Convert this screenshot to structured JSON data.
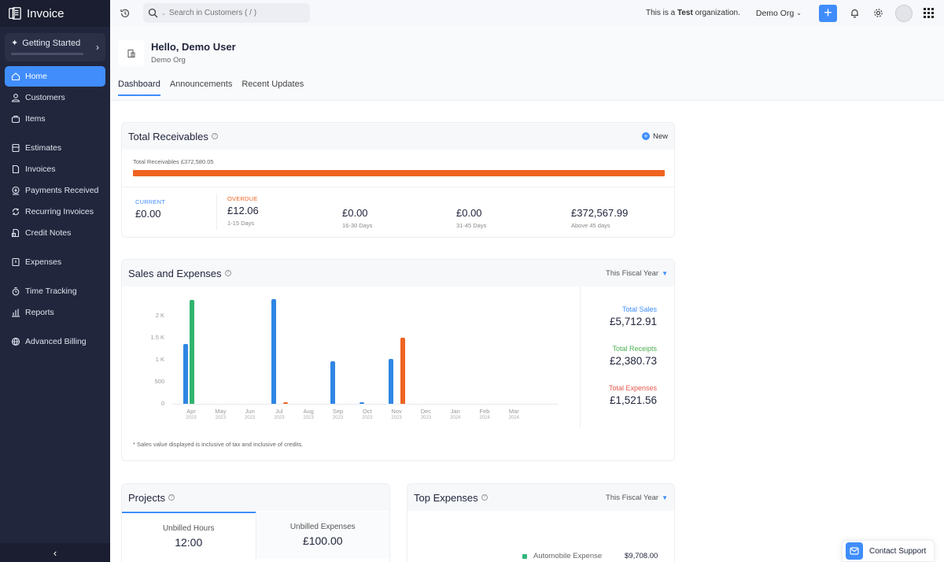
{
  "app": {
    "name": "Invoice"
  },
  "sidebar": {
    "getting_started": "Getting Started",
    "items": [
      {
        "label": "Home",
        "icon": "home-icon",
        "active": true
      },
      {
        "label": "Customers",
        "icon": "user-icon"
      },
      {
        "label": "Items",
        "icon": "basket-icon"
      },
      {
        "label": "Estimates",
        "icon": "calculator-icon"
      },
      {
        "label": "Invoices",
        "icon": "document-icon"
      },
      {
        "label": "Payments Received",
        "icon": "download-circle-icon"
      },
      {
        "label": "Recurring Invoices",
        "icon": "recurring-icon"
      },
      {
        "label": "Credit Notes",
        "icon": "credit-note-icon"
      },
      {
        "label": "Expenses",
        "icon": "receipt-icon"
      },
      {
        "label": "Time Tracking",
        "icon": "stopwatch-icon"
      },
      {
        "label": "Reports",
        "icon": "bar-chart-icon"
      },
      {
        "label": "Advanced Billing",
        "icon": "globe-icon"
      }
    ],
    "collapse": "‹"
  },
  "topbar": {
    "search_placeholder": "Search in Customers ( / )",
    "test_org_prefix": "This is a ",
    "test_org_bold": "Test",
    "test_org_suffix": " organization.",
    "org_switch": "Demo Org",
    "plus": "+"
  },
  "header": {
    "greeting": "Hello, Demo User",
    "org": "Demo Org",
    "tabs": [
      {
        "label": "Dashboard",
        "active": true
      },
      {
        "label": "Announcements"
      },
      {
        "label": "Recent Updates"
      }
    ]
  },
  "receivables": {
    "title": "Total Receivables",
    "new_label": "New",
    "bar_label": "Total Receivables £372,580.05",
    "bar_color": "#ef6422",
    "current": {
      "label": "CURRENT",
      "value": "£0.00",
      "color": "#408dfb"
    },
    "overdue_label": "OVERDUE",
    "overdue_color": "#ef6422",
    "buckets": [
      {
        "value": "£12.06",
        "sub": "1-15 Days"
      },
      {
        "value": "£0.00",
        "sub": "16-30 Days"
      },
      {
        "value": "£0.00",
        "sub": "31-45 Days"
      },
      {
        "value": "£372,567.99",
        "sub": "Above 45 days"
      }
    ]
  },
  "sales_expenses": {
    "title": "Sales and Expenses",
    "period": "This Fiscal Year",
    "footnote": "* Sales value displayed is inclusive of tax and inclusive of credits.",
    "totals": [
      {
        "label": "Total Sales",
        "value": "£5,712.91",
        "color": "#408dfb"
      },
      {
        "label": "Total Receipts",
        "value": "£2,380.73",
        "color": "#4caf50"
      },
      {
        "label": "Total Expenses",
        "value": "£1,521.56",
        "color": "#e5574a"
      }
    ]
  },
  "chart_data": {
    "type": "bar",
    "title": "Sales and Expenses",
    "categories": [
      "Apr 2023",
      "May 2023",
      "Jun 2023",
      "Jul 2023",
      "Aug 2023",
      "Sep 2023",
      "Oct 2023",
      "Nov 2023",
      "Dec 2023",
      "Jan 2024",
      "Feb 2024",
      "Mar 2024"
    ],
    "xticks": [
      {
        "m": "Apr",
        "y": "2023"
      },
      {
        "m": "May",
        "y": "2023"
      },
      {
        "m": "Jun",
        "y": "2023"
      },
      {
        "m": "Jul",
        "y": "2023"
      },
      {
        "m": "Aug",
        "y": "2023"
      },
      {
        "m": "Sep",
        "y": "2023"
      },
      {
        "m": "Oct",
        "y": "2023"
      },
      {
        "m": "Nov",
        "y": "2023"
      },
      {
        "m": "Dec",
        "y": "2023"
      },
      {
        "m": "Jan",
        "y": "2024"
      },
      {
        "m": "Feb",
        "y": "2024"
      },
      {
        "m": "Mar",
        "y": "2024"
      }
    ],
    "yticks": [
      "0",
      "500",
      "1 K",
      "1.5 K",
      "2 K"
    ],
    "ylim": [
      0,
      2500
    ],
    "series": [
      {
        "name": "Sales",
        "color": "#2f86e4",
        "values": [
          1360,
          0,
          0,
          2375,
          0,
          965,
          20,
          1020,
          0,
          0,
          0,
          0
        ]
      },
      {
        "name": "Receipts",
        "color": "#2fb36f",
        "values": [
          2360,
          0,
          0,
          0,
          0,
          0,
          0,
          0,
          0,
          0,
          0,
          0
        ]
      },
      {
        "name": "Expenses",
        "color": "#ef6422",
        "values": [
          0,
          0,
          0,
          20,
          0,
          0,
          0,
          1500,
          0,
          0,
          0,
          0
        ]
      }
    ],
    "grid": true,
    "legend": "none"
  },
  "projects": {
    "title": "Projects",
    "tabs": [
      {
        "label": "Unbilled Hours",
        "value": "12:00"
      },
      {
        "label": "Unbilled Expenses",
        "value": "£100.00"
      }
    ]
  },
  "top_expenses": {
    "title": "Top Expenses",
    "period": "This Fiscal Year",
    "items": [
      {
        "name": "Automobile Expense",
        "value": "$9,708.00",
        "color": "#2db77b"
      }
    ]
  },
  "support": {
    "label": "Contact Support"
  }
}
